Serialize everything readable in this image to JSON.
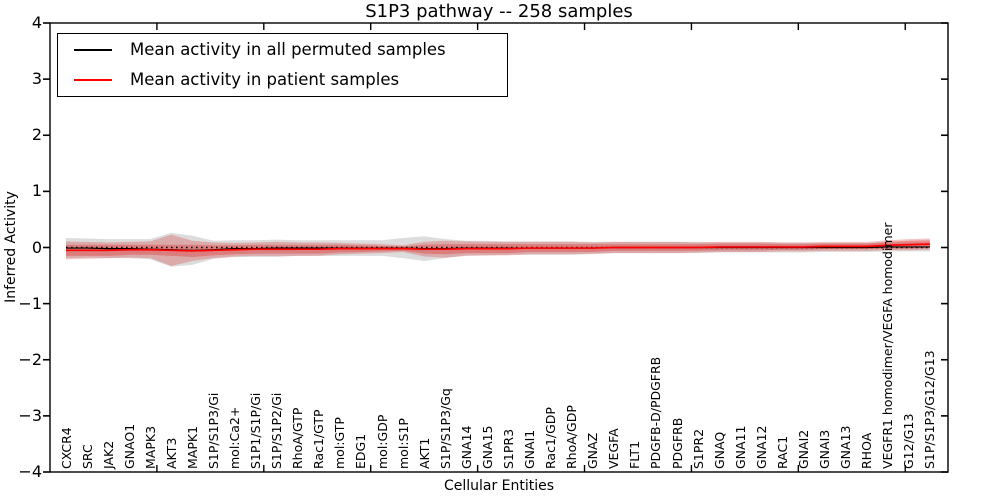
{
  "chart_data": {
    "type": "line",
    "title": "S1P3 pathway -- 258 samples",
    "xlabel": "Cellular Entities",
    "ylabel": "Inferred Activity",
    "ylim": [
      -4,
      4
    ],
    "ytick_values": [
      4,
      3,
      2,
      1,
      0,
      -1,
      -2,
      -3,
      -4
    ],
    "ytick_labels": [
      "4",
      "3",
      "2",
      "1",
      "0",
      "−1",
      "−2",
      "−3",
      "−4"
    ],
    "x_major_tick_every": 5,
    "grid": false,
    "legend_position": "upper left",
    "zero_line": {
      "y": 0,
      "style": "dotted",
      "color": "#000000"
    },
    "categories": [
      "CXCR4",
      "SRC",
      "JAK2",
      "GNAO1",
      "MAPK3",
      "AKT3",
      "MAPK1",
      "S1P/S1P3/Gi",
      "mol:Ca2+",
      "S1P1/S1P/Gi",
      "S1P/S1P2/Gi",
      "RhoA/GTP",
      "Rac1/GTP",
      "mol:GTP",
      "EDG1",
      "mol:GDP",
      "mol:S1P",
      "AKT1",
      "S1P/S1P3/Gq",
      "GNA14",
      "GNA15",
      "S1PR3",
      "GNAI1",
      "Rac1/GDP",
      "RhoA/GDP",
      "GNAZ",
      "VEGFA",
      "FLT1",
      "PDGFB-D/PDGFRB",
      "PDGFRB",
      "S1PR2",
      "GNAQ",
      "GNA11",
      "GNA12",
      "RAC1",
      "GNAI2",
      "GNAI3",
      "GNA13",
      "RHOA",
      "VEGFR1 homodimer/VEGFA homodimer",
      "G12/G13",
      "S1P/S1P3/G12/G13"
    ],
    "series": [
      {
        "name": "Mean activity in all permuted samples",
        "color": "#000000",
        "values": [
          -0.01,
          -0.01,
          -0.02,
          -0.02,
          -0.03,
          -0.04,
          -0.05,
          -0.04,
          -0.02,
          -0.02,
          -0.01,
          -0.01,
          -0.01,
          -0.01,
          -0.01,
          -0.01,
          -0.01,
          -0.02,
          -0.02,
          -0.01,
          -0.01,
          -0.01,
          -0.01,
          -0.01,
          -0.01,
          -0.01,
          0,
          0,
          0,
          0,
          0,
          0,
          0,
          0,
          0,
          0,
          0,
          0,
          0,
          0.01,
          0.01,
          0.01
        ]
      },
      {
        "name": "Mean activity in patient samples",
        "color": "#ff0000",
        "values": [
          -0.05,
          -0.05,
          -0.05,
          -0.04,
          -0.04,
          -0.05,
          -0.06,
          -0.05,
          -0.04,
          -0.03,
          -0.03,
          -0.03,
          -0.03,
          -0.02,
          -0.02,
          -0.02,
          -0.02,
          -0.03,
          -0.03,
          -0.02,
          -0.02,
          -0.02,
          -0.01,
          -0.01,
          -0.01,
          -0.01,
          0,
          0,
          0,
          0,
          0,
          0.01,
          0.01,
          0.01,
          0.01,
          0.01,
          0.02,
          0.02,
          0.02,
          0.04,
          0.05,
          0.06
        ]
      }
    ],
    "bands": [
      {
        "name": "permuted samples spread",
        "series": 0,
        "fill": "rgba(130,130,130,0.28)",
        "half_widths": [
          0.18,
          0.17,
          0.17,
          0.17,
          0.18,
          0.3,
          0.26,
          0.16,
          0.15,
          0.15,
          0.15,
          0.14,
          0.14,
          0.14,
          0.14,
          0.14,
          0.18,
          0.22,
          0.17,
          0.13,
          0.13,
          0.12,
          0.12,
          0.12,
          0.12,
          0.11,
          0.1,
          0.1,
          0.1,
          0.1,
          0.1,
          0.09,
          0.09,
          0.09,
          0.09,
          0.09,
          0.08,
          0.08,
          0.08,
          0.08,
          0.08,
          0.08
        ]
      },
      {
        "name": "patient samples spread (outer)",
        "series": 1,
        "fill": "rgba(219,58,58,0.30)",
        "half_widths": [
          0.16,
          0.15,
          0.14,
          0.14,
          0.15,
          0.28,
          0.18,
          0.14,
          0.12,
          0.12,
          0.13,
          0.12,
          0.12,
          0.1,
          0.09,
          0.08,
          0.06,
          0.13,
          0.15,
          0.13,
          0.12,
          0.12,
          0.11,
          0.11,
          0.11,
          0.1,
          0.1,
          0.1,
          0.1,
          0.1,
          0.09,
          0.09,
          0.09,
          0.09,
          0.08,
          0.08,
          0.08,
          0.08,
          0.08,
          0.09,
          0.1,
          0.1
        ]
      },
      {
        "name": "patient samples spread (inner)",
        "series": 1,
        "fill": "rgba(219,58,58,0.40)",
        "half_widths": [
          0.1,
          0.1,
          0.1,
          0.09,
          0.09,
          0.1,
          0.11,
          0.09,
          0.08,
          0.08,
          0.08,
          0.08,
          0.08,
          0.07,
          0.06,
          0.05,
          0.04,
          0.08,
          0.09,
          0.08,
          0.08,
          0.08,
          0.07,
          0.07,
          0.07,
          0.07,
          0.06,
          0.06,
          0.06,
          0.06,
          0.06,
          0.06,
          0.06,
          0.06,
          0.05,
          0.05,
          0.05,
          0.05,
          0.05,
          0.06,
          0.07,
          0.07
        ]
      }
    ]
  },
  "legend": {
    "items": [
      {
        "label": "Mean activity in all permuted samples",
        "color": "#000000"
      },
      {
        "label": "Mean activity in patient samples",
        "color": "#ff0000"
      }
    ]
  }
}
